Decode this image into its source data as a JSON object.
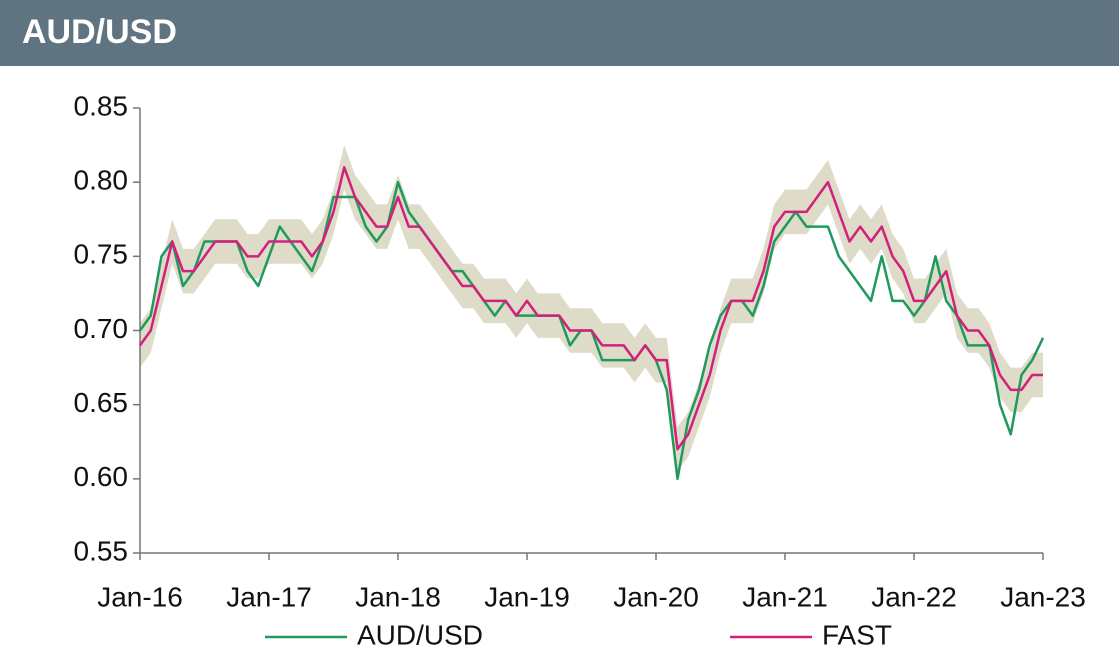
{
  "chart_data": {
    "type": "line",
    "title": "AUD/USD",
    "x": [
      "2016-01",
      "2016-02",
      "2016-03",
      "2016-04",
      "2016-05",
      "2016-06",
      "2016-07",
      "2016-08",
      "2016-09",
      "2016-10",
      "2016-11",
      "2016-12",
      "2017-01",
      "2017-02",
      "2017-03",
      "2017-04",
      "2017-05",
      "2017-06",
      "2017-07",
      "2017-08",
      "2017-09",
      "2017-10",
      "2017-11",
      "2017-12",
      "2018-01",
      "2018-02",
      "2018-03",
      "2018-04",
      "2018-05",
      "2018-06",
      "2018-07",
      "2018-08",
      "2018-09",
      "2018-10",
      "2018-11",
      "2018-12",
      "2019-01",
      "2019-02",
      "2019-03",
      "2019-04",
      "2019-05",
      "2019-06",
      "2019-07",
      "2019-08",
      "2019-09",
      "2019-10",
      "2019-11",
      "2019-12",
      "2020-01",
      "2020-02",
      "2020-03",
      "2020-04",
      "2020-05",
      "2020-06",
      "2020-07",
      "2020-08",
      "2020-09",
      "2020-10",
      "2020-11",
      "2020-12",
      "2021-01",
      "2021-02",
      "2021-03",
      "2021-04",
      "2021-05",
      "2021-06",
      "2021-07",
      "2021-08",
      "2021-09",
      "2021-10",
      "2021-11",
      "2021-12",
      "2022-01",
      "2022-02",
      "2022-03",
      "2022-04",
      "2022-05",
      "2022-06",
      "2022-07",
      "2022-08",
      "2022-09",
      "2022-10",
      "2022-11",
      "2022-12",
      "2023-01"
    ],
    "series": [
      {
        "name": "AUD/USD",
        "color": "#1f9a5c",
        "values": [
          0.7,
          0.71,
          0.75,
          0.76,
          0.73,
          0.74,
          0.76,
          0.76,
          0.76,
          0.76,
          0.74,
          0.73,
          0.75,
          0.77,
          0.76,
          0.75,
          0.74,
          0.76,
          0.79,
          0.79,
          0.79,
          0.77,
          0.76,
          0.77,
          0.8,
          0.78,
          0.77,
          0.76,
          0.75,
          0.74,
          0.74,
          0.73,
          0.72,
          0.71,
          0.72,
          0.71,
          0.71,
          0.71,
          0.71,
          0.71,
          0.69,
          0.7,
          0.7,
          0.68,
          0.68,
          0.68,
          0.68,
          0.69,
          0.68,
          0.66,
          0.6,
          0.64,
          0.66,
          0.69,
          0.71,
          0.72,
          0.72,
          0.71,
          0.73,
          0.76,
          0.77,
          0.78,
          0.77,
          0.77,
          0.77,
          0.75,
          0.74,
          0.73,
          0.72,
          0.75,
          0.72,
          0.72,
          0.71,
          0.72,
          0.75,
          0.72,
          0.71,
          0.69,
          0.69,
          0.69,
          0.65,
          0.63,
          0.67,
          0.68,
          0.695
        ]
      },
      {
        "name": "FAST",
        "color": "#d3207c",
        "values": [
          0.69,
          0.7,
          0.73,
          0.76,
          0.74,
          0.74,
          0.75,
          0.76,
          0.76,
          0.76,
          0.75,
          0.75,
          0.76,
          0.76,
          0.76,
          0.76,
          0.75,
          0.76,
          0.78,
          0.81,
          0.79,
          0.78,
          0.77,
          0.77,
          0.79,
          0.77,
          0.77,
          0.76,
          0.75,
          0.74,
          0.73,
          0.73,
          0.72,
          0.72,
          0.72,
          0.71,
          0.72,
          0.71,
          0.71,
          0.71,
          0.7,
          0.7,
          0.7,
          0.69,
          0.69,
          0.69,
          0.68,
          0.69,
          0.68,
          0.68,
          0.62,
          0.63,
          0.65,
          0.67,
          0.7,
          0.72,
          0.72,
          0.72,
          0.74,
          0.77,
          0.78,
          0.78,
          0.78,
          0.79,
          0.8,
          0.78,
          0.76,
          0.77,
          0.76,
          0.77,
          0.75,
          0.74,
          0.72,
          0.72,
          0.73,
          0.74,
          0.71,
          0.7,
          0.7,
          0.69,
          0.67,
          0.66,
          0.66,
          0.67,
          0.67
        ]
      }
    ],
    "band": {
      "color": "#dedbc9",
      "lower": [
        0.675,
        0.685,
        0.715,
        0.745,
        0.725,
        0.725,
        0.735,
        0.745,
        0.745,
        0.745,
        0.735,
        0.735,
        0.745,
        0.745,
        0.745,
        0.745,
        0.735,
        0.745,
        0.765,
        0.795,
        0.775,
        0.765,
        0.755,
        0.755,
        0.775,
        0.755,
        0.755,
        0.745,
        0.735,
        0.725,
        0.715,
        0.715,
        0.705,
        0.705,
        0.705,
        0.695,
        0.705,
        0.695,
        0.695,
        0.695,
        0.685,
        0.685,
        0.685,
        0.675,
        0.675,
        0.675,
        0.665,
        0.675,
        0.665,
        0.665,
        0.605,
        0.615,
        0.635,
        0.655,
        0.685,
        0.705,
        0.705,
        0.705,
        0.725,
        0.755,
        0.765,
        0.765,
        0.765,
        0.775,
        0.785,
        0.765,
        0.745,
        0.755,
        0.745,
        0.755,
        0.735,
        0.725,
        0.705,
        0.705,
        0.715,
        0.725,
        0.695,
        0.685,
        0.685,
        0.675,
        0.655,
        0.645,
        0.645,
        0.655,
        0.655
      ],
      "upper": [
        0.705,
        0.715,
        0.745,
        0.775,
        0.755,
        0.755,
        0.765,
        0.775,
        0.775,
        0.775,
        0.765,
        0.765,
        0.775,
        0.775,
        0.775,
        0.775,
        0.765,
        0.775,
        0.795,
        0.825,
        0.805,
        0.795,
        0.785,
        0.785,
        0.805,
        0.785,
        0.785,
        0.775,
        0.765,
        0.755,
        0.745,
        0.745,
        0.735,
        0.735,
        0.735,
        0.725,
        0.735,
        0.725,
        0.725,
        0.725,
        0.715,
        0.715,
        0.715,
        0.705,
        0.705,
        0.705,
        0.695,
        0.705,
        0.695,
        0.695,
        0.635,
        0.645,
        0.665,
        0.685,
        0.715,
        0.735,
        0.735,
        0.735,
        0.755,
        0.785,
        0.795,
        0.795,
        0.795,
        0.805,
        0.815,
        0.795,
        0.775,
        0.785,
        0.775,
        0.785,
        0.765,
        0.755,
        0.735,
        0.735,
        0.745,
        0.755,
        0.725,
        0.715,
        0.715,
        0.705,
        0.685,
        0.675,
        0.675,
        0.685,
        0.685
      ]
    },
    "xlim": [
      "2016-01",
      "2023-01"
    ],
    "xticks": [
      {
        "value": "2016-01",
        "label": "Jan-16"
      },
      {
        "value": "2017-01",
        "label": "Jan-17"
      },
      {
        "value": "2018-01",
        "label": "Jan-18"
      },
      {
        "value": "2019-01",
        "label": "Jan-19"
      },
      {
        "value": "2020-01",
        "label": "Jan-20"
      },
      {
        "value": "2021-01",
        "label": "Jan-21"
      },
      {
        "value": "2022-01",
        "label": "Jan-22"
      },
      {
        "value": "2023-01",
        "label": "Jan-23"
      }
    ],
    "ylim": [
      0.55,
      0.85
    ],
    "yticks": [
      {
        "value": 0.55,
        "label": "0.55"
      },
      {
        "value": 0.6,
        "label": "0.60"
      },
      {
        "value": 0.65,
        "label": "0.65"
      },
      {
        "value": 0.7,
        "label": "0.70"
      },
      {
        "value": 0.75,
        "label": "0.75"
      },
      {
        "value": 0.8,
        "label": "0.80"
      },
      {
        "value": 0.85,
        "label": "0.85"
      }
    ],
    "grid": false
  }
}
